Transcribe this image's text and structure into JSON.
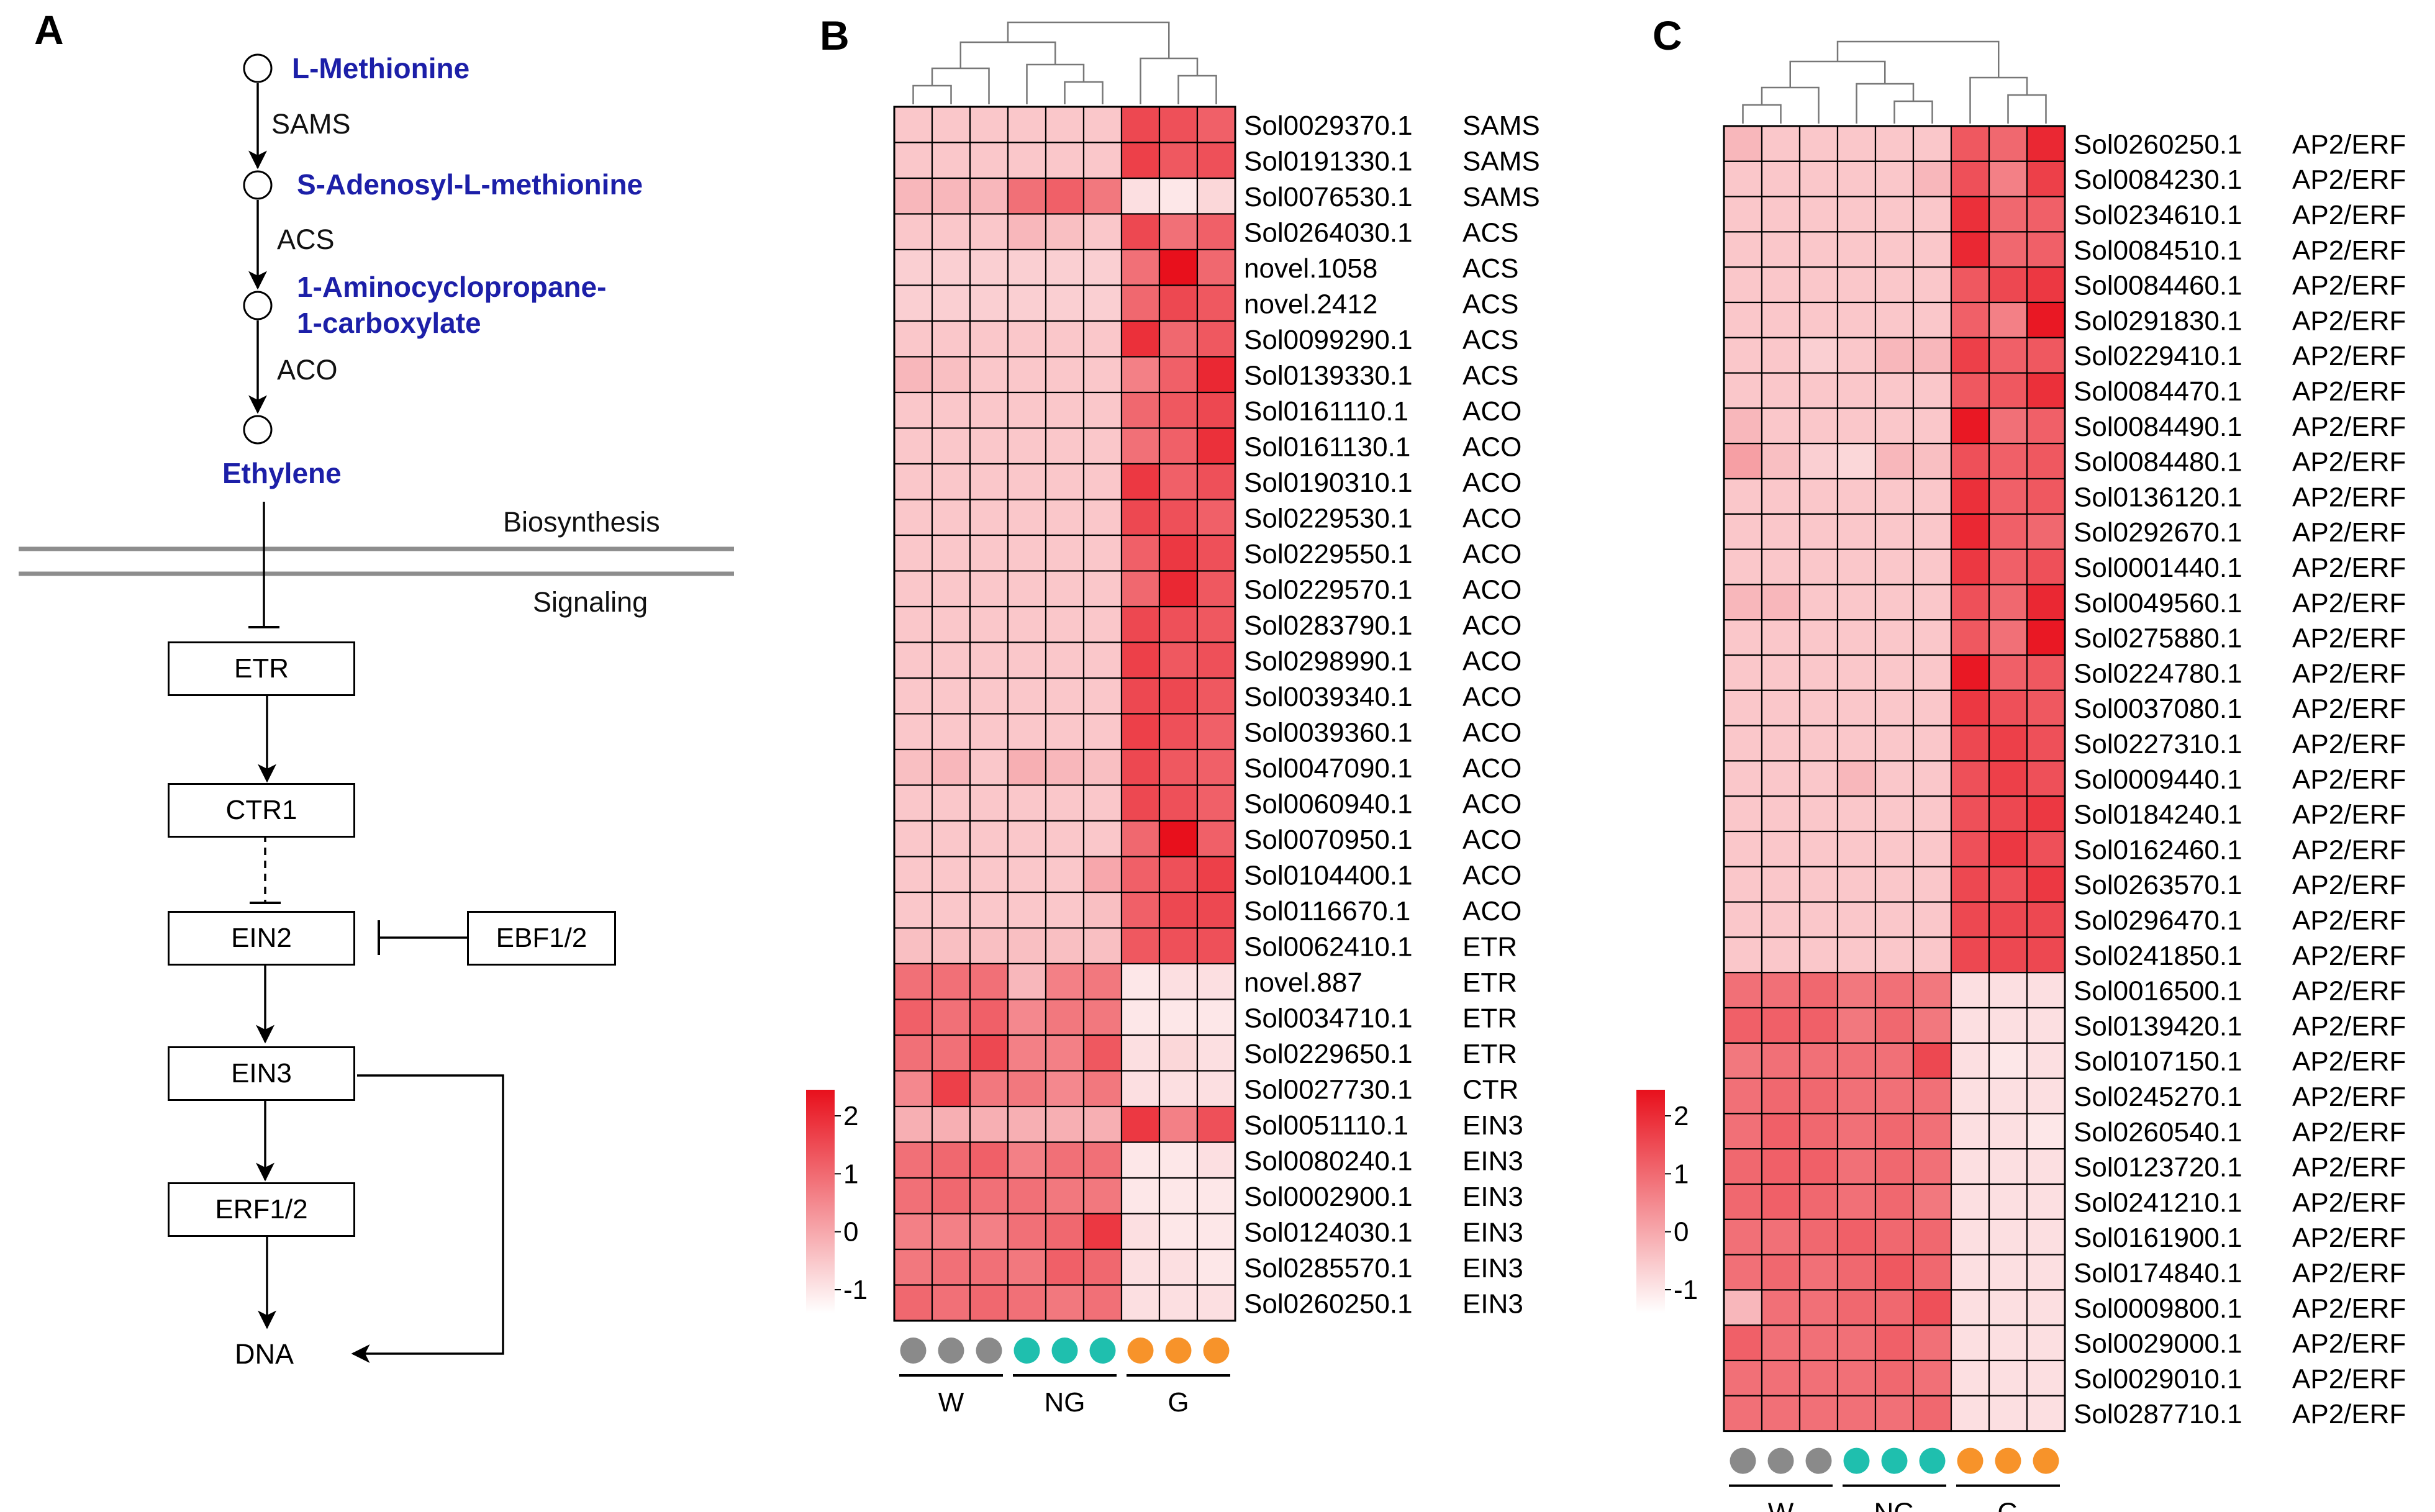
{
  "panel_a": {
    "letter": "A",
    "compounds": [
      "L-Methionine",
      "S-Adenosyl-L-methionine",
      "1-Aminocyclopropane-",
      "1-carboxylate",
      "Ethylene"
    ],
    "enzymes": [
      "SAMS",
      "ACS",
      "ACO"
    ],
    "biosynthesis_label": "Biosynthesis",
    "signaling_label": "Signaling",
    "nodes": {
      "etr": "ETR",
      "ctr1": "CTR1",
      "ein2": "EIN2",
      "ebf": "EBF1/2",
      "ein3": "EIN3",
      "erf": "ERF1/2"
    },
    "dna": "DNA"
  },
  "chart_data": [
    {
      "type": "heatmap",
      "panel": "B",
      "groups": [
        "W",
        "NG",
        "G"
      ],
      "group_colors": [
        "#8a8a8a",
        "#1fbfae",
        "#f7932a"
      ],
      "colorbar": {
        "ticks": [
          "2",
          "1",
          "0",
          "-1"
        ],
        "range": [
          -1,
          2
        ],
        "low_color": "#ffffff",
        "high_color": "#e8101c"
      },
      "genes": [
        "Sol0029370.1",
        "Sol0191330.1",
        "Sol0076530.1",
        "Sol0264030.1",
        "novel.1058",
        "novel.2412",
        "Sol0099290.1",
        "Sol0139330.1",
        "Sol0161110.1",
        "Sol0161130.1",
        "Sol0190310.1",
        "Sol0229530.1",
        "Sol0229550.1",
        "Sol0229570.1",
        "Sol0283790.1",
        "Sol0298990.1",
        "Sol0039340.1",
        "Sol0039360.1",
        "Sol0047090.1",
        "Sol0060940.1",
        "Sol0070950.1",
        "Sol0104400.1",
        "Sol0116670.1",
        "Sol0062410.1",
        "novel.887",
        "Sol0034710.1",
        "Sol0229650.1",
        "Sol0027730.1",
        "Sol0051110.1",
        "Sol0080240.1",
        "Sol0002900.1",
        "Sol0124030.1",
        "Sol0285570.1",
        "Sol0260250.1"
      ],
      "families": [
        "SAMS",
        "SAMS",
        "SAMS",
        "ACS",
        "ACS",
        "ACS",
        "ACS",
        "ACS",
        "ACO",
        "ACO",
        "ACO",
        "ACO",
        "ACO",
        "ACO",
        "ACO",
        "ACO",
        "ACO",
        "ACO",
        "ACO",
        "ACO",
        "ACO",
        "ACO",
        "ACO",
        "ETR",
        "ETR",
        "ETR",
        "ETR",
        "CTR",
        "EIN3",
        "EIN3",
        "EIN3",
        "EIN3",
        "EIN3",
        "EIN3"
      ],
      "values": [
        [
          -0.3,
          -0.3,
          -0.3,
          -0.3,
          -0.3,
          -0.3,
          1.3,
          1.2,
          1.0
        ],
        [
          -0.3,
          -0.3,
          -0.3,
          -0.3,
          -0.3,
          -0.3,
          1.4,
          1.1,
          1.2
        ],
        [
          -0.1,
          -0.1,
          -0.1,
          0.8,
          1.0,
          0.7,
          -0.6,
          -0.7,
          -0.5
        ],
        [
          -0.3,
          -0.3,
          -0.3,
          -0.1,
          -0.2,
          -0.3,
          1.3,
          0.8,
          1.0
        ],
        [
          -0.4,
          -0.4,
          -0.4,
          -0.4,
          -0.4,
          -0.4,
          0.8,
          2.0,
          0.9
        ],
        [
          -0.4,
          -0.4,
          -0.4,
          -0.4,
          -0.4,
          -0.4,
          0.9,
          1.3,
          1.1
        ],
        [
          -0.3,
          -0.3,
          -0.3,
          -0.3,
          -0.3,
          -0.3,
          1.6,
          0.9,
          1.1
        ],
        [
          -0.1,
          -0.2,
          -0.3,
          -0.3,
          -0.3,
          -0.3,
          0.6,
          1.0,
          1.7
        ],
        [
          -0.3,
          -0.3,
          -0.3,
          -0.3,
          -0.3,
          -0.3,
          0.9,
          1.1,
          1.3
        ],
        [
          -0.3,
          -0.3,
          -0.3,
          -0.3,
          -0.3,
          -0.3,
          0.8,
          1.0,
          1.6
        ],
        [
          -0.3,
          -0.3,
          -0.3,
          -0.3,
          -0.3,
          -0.3,
          1.5,
          1.0,
          1.2
        ],
        [
          -0.3,
          -0.3,
          -0.3,
          -0.3,
          -0.3,
          -0.3,
          1.3,
          1.2,
          1.0
        ],
        [
          -0.3,
          -0.3,
          -0.3,
          -0.3,
          -0.3,
          -0.3,
          1.0,
          1.5,
          1.2
        ],
        [
          -0.3,
          -0.3,
          -0.3,
          -0.3,
          -0.3,
          -0.3,
          0.9,
          1.7,
          1.1
        ],
        [
          -0.3,
          -0.3,
          -0.3,
          -0.3,
          -0.3,
          -0.3,
          1.3,
          1.2,
          1.1
        ],
        [
          -0.3,
          -0.3,
          -0.3,
          -0.3,
          -0.3,
          -0.3,
          1.4,
          1.1,
          1.2
        ],
        [
          -0.3,
          -0.3,
          -0.3,
          -0.3,
          -0.3,
          -0.3,
          1.3,
          1.3,
          1.1
        ],
        [
          -0.3,
          -0.3,
          -0.3,
          -0.3,
          -0.3,
          -0.3,
          1.4,
          1.2,
          1.0
        ],
        [
          -0.2,
          -0.1,
          -0.3,
          0.0,
          -0.1,
          -0.2,
          1.3,
          1.1,
          1.0
        ],
        [
          -0.3,
          -0.3,
          -0.3,
          -0.3,
          -0.3,
          -0.3,
          1.3,
          1.2,
          1.0
        ],
        [
          -0.3,
          -0.3,
          -0.3,
          -0.3,
          -0.3,
          -0.3,
          0.9,
          2.0,
          1.0
        ],
        [
          -0.3,
          -0.3,
          -0.3,
          -0.3,
          -0.3,
          0.1,
          1.0,
          1.2,
          1.4
        ],
        [
          -0.3,
          -0.3,
          -0.3,
          -0.3,
          -0.3,
          -0.2,
          1.0,
          1.3,
          1.3
        ],
        [
          -0.2,
          -0.2,
          -0.2,
          -0.2,
          -0.2,
          -0.2,
          1.1,
          1.2,
          1.2
        ],
        [
          0.8,
          0.8,
          0.8,
          -0.1,
          0.6,
          0.7,
          -0.7,
          -0.6,
          -0.6
        ],
        [
          1.0,
          0.8,
          1.0,
          0.5,
          0.7,
          0.7,
          -0.7,
          -0.7,
          -0.7
        ],
        [
          0.8,
          0.8,
          1.3,
          0.6,
          0.6,
          1.1,
          -0.6,
          -0.5,
          -0.6
        ],
        [
          0.5,
          1.4,
          0.7,
          0.7,
          0.5,
          0.7,
          -0.6,
          -0.6,
          -0.6
        ],
        [
          0.0,
          0.0,
          0.0,
          0.0,
          0.0,
          0.0,
          1.5,
          0.6,
          1.2
        ],
        [
          0.8,
          0.9,
          1.0,
          0.6,
          0.8,
          0.8,
          -0.7,
          -0.7,
          -0.6
        ],
        [
          0.8,
          0.9,
          0.8,
          0.8,
          0.7,
          0.7,
          -0.7,
          -0.7,
          -0.7
        ],
        [
          0.6,
          0.6,
          0.6,
          0.8,
          0.9,
          1.5,
          -0.6,
          -0.7,
          -0.7
        ],
        [
          0.7,
          0.8,
          0.8,
          0.7,
          1.0,
          0.9,
          -0.6,
          -0.6,
          -0.7
        ],
        [
          0.9,
          0.8,
          0.9,
          0.8,
          0.7,
          0.8,
          -0.6,
          -0.6,
          -0.6
        ]
      ]
    },
    {
      "type": "heatmap",
      "panel": "C",
      "groups": [
        "W",
        "NG",
        "G"
      ],
      "group_colors": [
        "#8a8a8a",
        "#1fbfae",
        "#f7932a"
      ],
      "colorbar": {
        "ticks": [
          "2",
          "1",
          "0",
          "-1"
        ],
        "range": [
          -1,
          2
        ],
        "low_color": "#ffffff",
        "high_color": "#e8101c"
      },
      "genes": [
        "Sol0260250.1",
        "Sol0084230.1",
        "Sol0234610.1",
        "Sol0084510.1",
        "Sol0084460.1",
        "Sol0291830.1",
        "Sol0229410.1",
        "Sol0084470.1",
        "Sol0084490.1",
        "Sol0084480.1",
        "Sol0136120.1",
        "Sol0292670.1",
        "Sol0001440.1",
        "Sol0049560.1",
        "Sol0275880.1",
        "Sol0224780.1",
        "Sol0037080.1",
        "Sol0227310.1",
        "Sol0009440.1",
        "Sol0184240.1",
        "Sol0162460.1",
        "Sol0263570.1",
        "Sol0296470.1",
        "Sol0241850.1",
        "Sol0016500.1",
        "Sol0139420.1",
        "Sol0107150.1",
        "Sol0245270.1",
        "Sol0260540.1",
        "Sol0123720.1",
        "Sol0241210.1",
        "Sol0161900.1",
        "Sol0174840.1",
        "Sol0009800.1",
        "Sol0029000.1",
        "Sol0029010.1",
        "Sol0287710.1"
      ],
      "families": [
        "AP2/ERF",
        "AP2/ERF",
        "AP2/ERF",
        "AP2/ERF",
        "AP2/ERF",
        "AP2/ERF",
        "AP2/ERF",
        "AP2/ERF",
        "AP2/ERF",
        "AP2/ERF",
        "AP2/ERF",
        "AP2/ERF",
        "AP2/ERF",
        "AP2/ERF",
        "AP2/ERF",
        "AP2/ERF",
        "AP2/ERF",
        "AP2/ERF",
        "AP2/ERF",
        "AP2/ERF",
        "AP2/ERF",
        "AP2/ERF",
        "AP2/ERF",
        "AP2/ERF",
        "AP2/ERF",
        "AP2/ERF",
        "AP2/ERF",
        "AP2/ERF",
        "AP2/ERF",
        "AP2/ERF",
        "AP2/ERF",
        "AP2/ERF",
        "AP2/ERF",
        "AP2/ERF",
        "AP2/ERF",
        "AP2/ERF",
        "AP2/ERF"
      ],
      "values": [
        [
          -0.1,
          -0.3,
          -0.3,
          -0.3,
          -0.3,
          -0.3,
          1.1,
          0.9,
          1.7
        ],
        [
          -0.3,
          -0.3,
          -0.3,
          -0.3,
          -0.3,
          -0.1,
          1.2,
          0.6,
          1.4
        ],
        [
          -0.3,
          -0.3,
          -0.3,
          -0.3,
          -0.3,
          -0.3,
          1.6,
          0.9,
          1.0
        ],
        [
          -0.3,
          -0.3,
          -0.3,
          -0.3,
          -0.3,
          -0.3,
          1.7,
          0.9,
          1.0
        ],
        [
          -0.3,
          -0.3,
          -0.3,
          -0.3,
          -0.3,
          -0.3,
          1.1,
          1.3,
          1.5
        ],
        [
          -0.3,
          -0.3,
          -0.3,
          -0.3,
          -0.3,
          -0.3,
          1.0,
          0.6,
          1.9
        ],
        [
          -0.3,
          -0.3,
          -0.4,
          -0.3,
          -0.1,
          -0.1,
          1.4,
          1.0,
          1.1
        ],
        [
          -0.3,
          -0.3,
          -0.3,
          -0.3,
          -0.3,
          -0.3,
          1.1,
          1.1,
          1.6
        ],
        [
          -0.1,
          -0.3,
          -0.3,
          -0.3,
          -0.3,
          -0.3,
          1.9,
          0.8,
          1.0
        ],
        [
          0.2,
          -0.2,
          -0.4,
          -0.5,
          -0.1,
          -0.2,
          1.2,
          1.0,
          1.1
        ],
        [
          -0.3,
          -0.3,
          -0.3,
          -0.3,
          -0.3,
          -0.3,
          1.6,
          1.0,
          1.1
        ],
        [
          -0.3,
          -0.3,
          -0.3,
          -0.3,
          -0.3,
          -0.3,
          1.7,
          1.0,
          0.9
        ],
        [
          -0.3,
          -0.3,
          -0.3,
          -0.3,
          -0.3,
          -0.3,
          1.5,
          1.0,
          1.2
        ],
        [
          -0.1,
          -0.1,
          -0.3,
          -0.3,
          -0.3,
          -0.3,
          1.2,
          0.9,
          1.7
        ],
        [
          -0.3,
          -0.3,
          -0.3,
          -0.3,
          -0.3,
          -0.3,
          1.1,
          0.8,
          1.9
        ],
        [
          -0.3,
          -0.3,
          -0.3,
          -0.3,
          -0.3,
          -0.3,
          1.9,
          1.0,
          1.1
        ],
        [
          -0.3,
          -0.3,
          -0.3,
          -0.3,
          -0.3,
          -0.3,
          1.5,
          1.2,
          1.1
        ],
        [
          -0.3,
          -0.3,
          -0.3,
          -0.3,
          -0.3,
          -0.3,
          1.3,
          1.4,
          1.2
        ],
        [
          -0.3,
          -0.3,
          -0.3,
          -0.1,
          -0.3,
          -0.3,
          1.2,
          1.4,
          1.2
        ],
        [
          -0.3,
          -0.3,
          -0.3,
          -0.3,
          -0.3,
          -0.3,
          1.2,
          1.3,
          1.5
        ],
        [
          -0.3,
          -0.3,
          -0.3,
          -0.3,
          -0.3,
          -0.3,
          1.2,
          1.5,
          1.2
        ],
        [
          -0.3,
          -0.3,
          -0.3,
          -0.3,
          -0.3,
          -0.3,
          1.3,
          1.2,
          1.5
        ],
        [
          -0.3,
          -0.3,
          -0.3,
          -0.3,
          -0.3,
          -0.3,
          1.3,
          1.3,
          1.3
        ],
        [
          -0.3,
          -0.3,
          -0.3,
          -0.3,
          -0.3,
          -0.3,
          1.3,
          1.3,
          1.3
        ],
        [
          0.8,
          0.8,
          0.9,
          0.7,
          0.8,
          0.7,
          -0.6,
          -0.6,
          -0.6
        ],
        [
          1.0,
          1.0,
          1.0,
          0.7,
          0.9,
          0.7,
          -0.6,
          -0.6,
          -0.6
        ],
        [
          0.7,
          0.8,
          0.8,
          0.8,
          0.8,
          1.3,
          -0.6,
          -0.7,
          -0.6
        ],
        [
          0.8,
          0.9,
          0.9,
          0.8,
          0.8,
          0.8,
          -0.6,
          -0.6,
          -0.6
        ],
        [
          0.8,
          1.0,
          0.9,
          0.8,
          0.9,
          0.8,
          -0.6,
          -0.6,
          -0.7
        ],
        [
          0.9,
          1.0,
          1.0,
          0.8,
          0.9,
          0.8,
          -0.6,
          -0.6,
          -0.6
        ],
        [
          0.9,
          1.0,
          0.9,
          0.8,
          0.9,
          0.7,
          -0.6,
          -0.6,
          -0.6
        ],
        [
          0.8,
          0.8,
          0.9,
          1.0,
          0.9,
          0.9,
          -0.6,
          -0.6,
          -0.6
        ],
        [
          0.8,
          0.9,
          0.8,
          0.9,
          1.1,
          0.9,
          -0.6,
          -0.6,
          -0.6
        ],
        [
          -0.1,
          0.8,
          0.8,
          0.9,
          0.9,
          1.2,
          -0.6,
          -0.6,
          -0.6
        ],
        [
          1.0,
          0.8,
          0.8,
          0.8,
          1.0,
          0.8,
          -0.6,
          -0.6,
          -0.6
        ],
        [
          0.8,
          0.8,
          0.8,
          0.8,
          0.9,
          0.8,
          -0.6,
          -0.6,
          -0.6
        ],
        [
          0.8,
          0.8,
          0.8,
          0.8,
          0.8,
          0.9,
          -0.6,
          -0.6,
          -0.6
        ]
      ]
    }
  ]
}
